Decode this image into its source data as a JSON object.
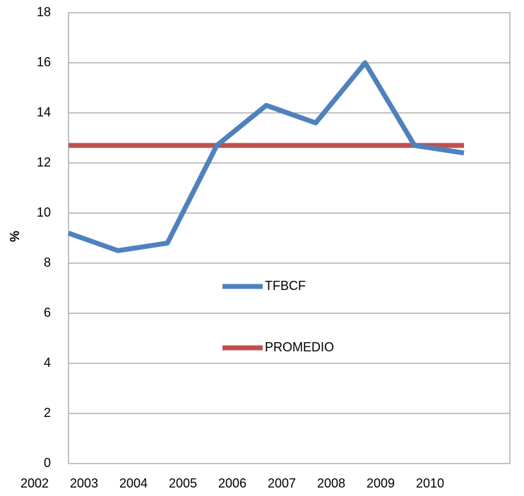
{
  "chart_data": {
    "type": "line",
    "ylabel": "%",
    "categories": [
      "2002",
      "2003",
      "2004",
      "2005",
      "2006",
      "2007",
      "2008",
      "2009",
      "2010"
    ],
    "series": [
      {
        "name": "TFBCF",
        "color": "#4f81bd",
        "values": [
          9.2,
          8.5,
          8.8,
          12.7,
          14.3,
          13.6,
          16.0,
          12.7,
          12.4
        ]
      },
      {
        "name": "PROMEDIO",
        "color": "#c0504d",
        "values": [
          12.7,
          12.7,
          12.7,
          12.7,
          12.7,
          12.7,
          12.7,
          12.7,
          12.7
        ]
      }
    ],
    "ylim": [
      0,
      18
    ],
    "yticks": [
      0,
      2,
      4,
      6,
      8,
      10,
      12,
      14,
      16,
      18
    ],
    "grid": true
  }
}
